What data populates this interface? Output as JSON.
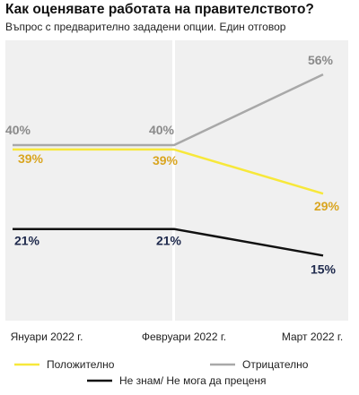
{
  "title": "Как оценявате работата на правителството?",
  "subtitle": "Въпрос с предварително зададени опции. Един отговор",
  "colors": {
    "positive": "#f7e83a",
    "negative": "#a8a8a8",
    "unsure": "#111111",
    "positive_label": "#d9a520",
    "negative_label": "#8a8a8a",
    "unsure_label": "#1f2a4d",
    "panel": "#f0f0f0"
  },
  "chart_data": {
    "type": "line",
    "categories": [
      "Януари 2022 г.",
      "Февруари 2022 г.",
      "Март 2022 г."
    ],
    "ylim": [
      0,
      70
    ],
    "series": [
      {
        "name": "Отрицателно",
        "key": "negative",
        "values": [
          40,
          40,
          56
        ],
        "labels": [
          "40%",
          "40%",
          "56%"
        ]
      },
      {
        "name": "Положително",
        "key": "positive",
        "values": [
          39,
          39,
          29
        ],
        "labels": [
          "39%",
          "39%",
          "29%"
        ]
      },
      {
        "name": "Не знам/ Не мога да преценя",
        "key": "unsure",
        "values": [
          21,
          21,
          15
        ],
        "labels": [
          "21%",
          "21%",
          "15%"
        ]
      }
    ],
    "legend": [
      "Положително",
      "Отрицателно",
      "Не знам/ Не мога да преценя"
    ],
    "legend_position": "bottom",
    "grid": false
  }
}
